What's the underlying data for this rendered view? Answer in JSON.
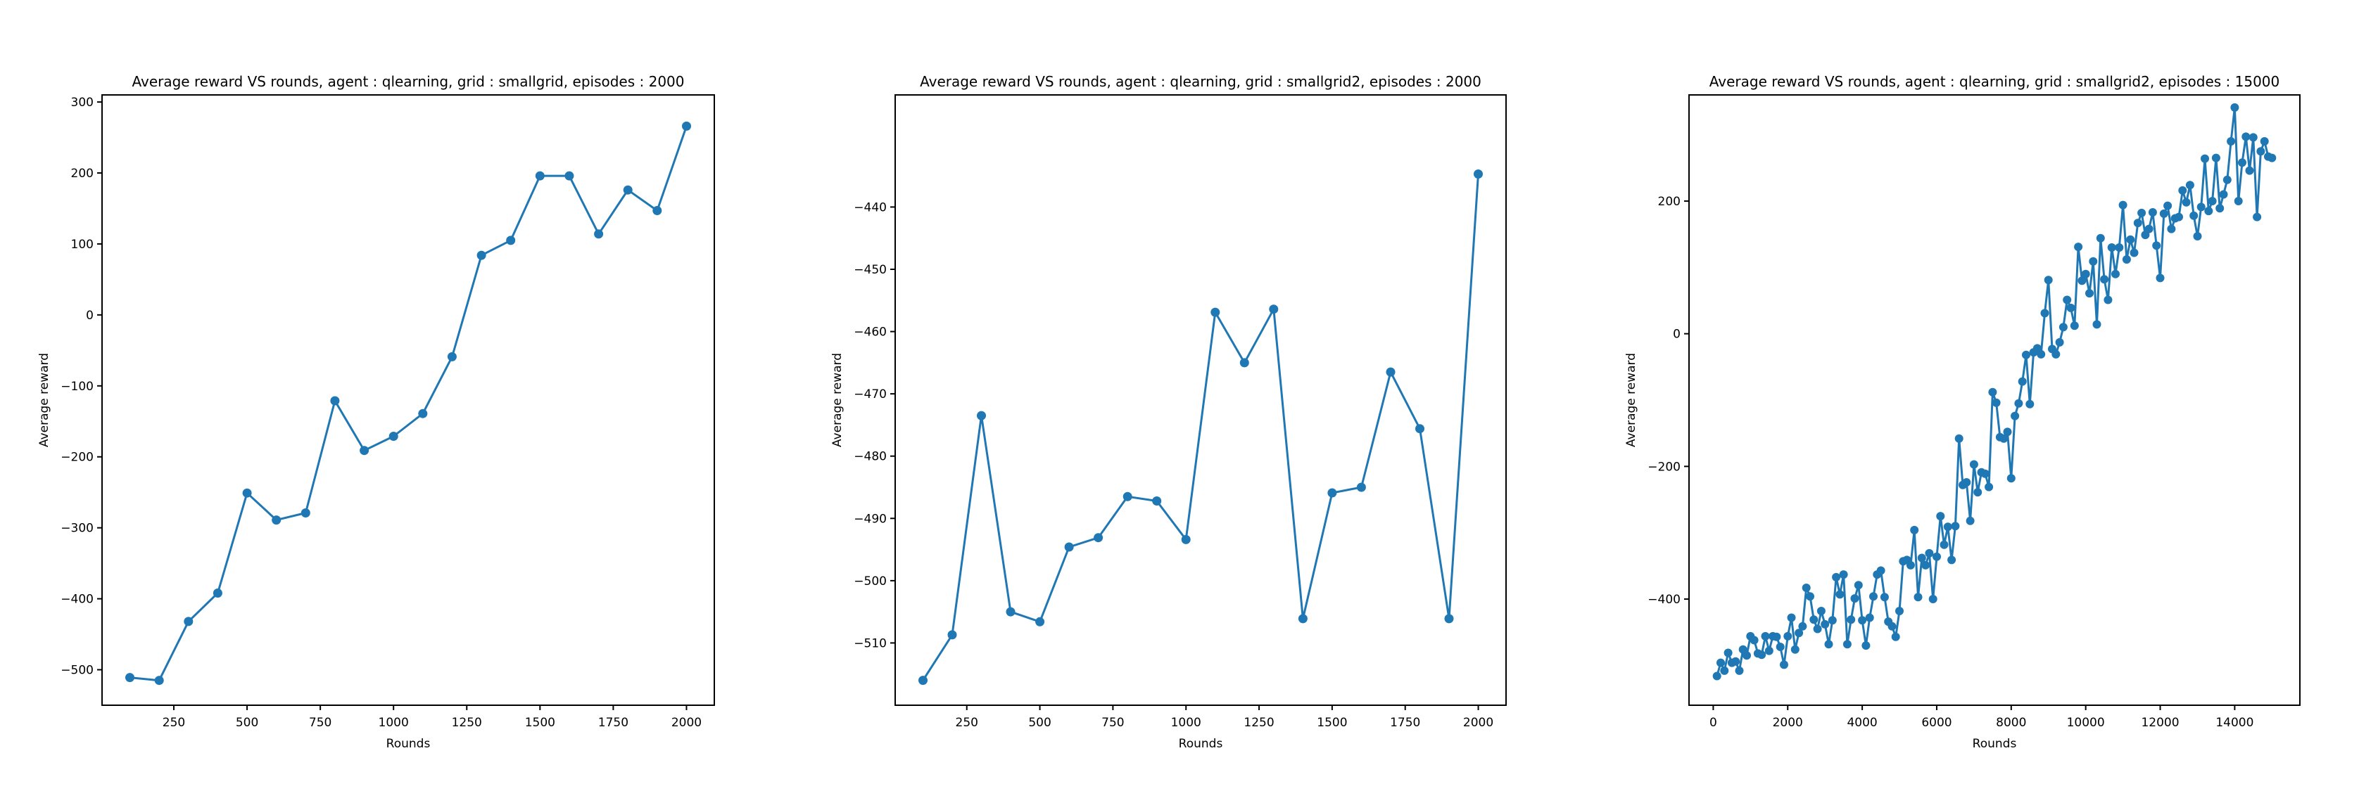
{
  "colors": {
    "series": "#1f77b4",
    "axes": "#000000",
    "background": "#ffffff"
  },
  "chart_data": [
    {
      "type": "line",
      "markers": "circle",
      "title": "Average reward VS rounds, agent : qlearning, grid : smallgrid, episodes : 2000",
      "xlabel": "Rounds",
      "ylabel": "Average reward",
      "grid": false,
      "xlim": [
        5,
        2095
      ],
      "ylim": [
        -550,
        310
      ],
      "xticks": [
        250,
        500,
        750,
        1000,
        1250,
        1500,
        1750,
        2000
      ],
      "xtick_labels": [
        "250",
        "500",
        "750",
        "1000",
        "1250",
        "1500",
        "1750",
        "2000"
      ],
      "yticks": [
        -500,
        -400,
        -300,
        -200,
        -100,
        0,
        100,
        200,
        300
      ],
      "ytick_labels": [
        "−500",
        "−400",
        "−300",
        "−200",
        "−100",
        "0",
        "100",
        "200",
        "300"
      ],
      "x": [
        100,
        200,
        300,
        400,
        500,
        600,
        700,
        800,
        900,
        1000,
        1100,
        1200,
        1300,
        1400,
        1500,
        1600,
        1700,
        1800,
        1900,
        2000
      ],
      "y": [
        -511,
        -515,
        -432,
        -392,
        -251,
        -289,
        -279,
        -121,
        -191,
        -171,
        -139,
        -59,
        84,
        105,
        196,
        196,
        114,
        176,
        147,
        266
      ]
    },
    {
      "type": "line",
      "markers": "circle",
      "title": "Average reward VS rounds, agent : qlearning, grid : smallgrid2, episodes : 2000",
      "xlabel": "Rounds",
      "ylabel": "Average reward",
      "grid": false,
      "xlim": [
        5,
        2095
      ],
      "ylim": [
        -520,
        -422
      ],
      "xticks": [
        250,
        500,
        750,
        1000,
        1250,
        1500,
        1750,
        2000
      ],
      "xtick_labels": [
        "250",
        "500",
        "750",
        "1000",
        "1250",
        "1500",
        "1750",
        "2000"
      ],
      "yticks": [
        -510,
        -500,
        -490,
        -480,
        -470,
        -460,
        -450,
        -440
      ],
      "ytick_labels": [
        "−510",
        "−500",
        "−490",
        "−480",
        "−470",
        "−460",
        "−450",
        "−440"
      ],
      "x": [
        100,
        200,
        300,
        400,
        500,
        600,
        700,
        800,
        900,
        1000,
        1100,
        1200,
        1300,
        1400,
        1500,
        1600,
        1700,
        1800,
        1900,
        2000
      ],
      "y": [
        -516.0,
        -508.7,
        -473.5,
        -505.0,
        -506.6,
        -494.6,
        -493.1,
        -486.5,
        -487.2,
        -493.4,
        -456.9,
        -465.0,
        -456.4,
        -506.1,
        -485.9,
        -485.0,
        -466.5,
        -475.6,
        -506.1,
        -434.7
      ]
    },
    {
      "type": "line",
      "markers": "circle",
      "title": "Average reward VS rounds, agent : qlearning, grid : smallgrid2, episodes : 15000",
      "xlabel": "Rounds",
      "ylabel": "Average reward",
      "grid": false,
      "xlim": [
        -650,
        15750
      ],
      "ylim": [
        -560,
        360
      ],
      "xticks": [
        0,
        2000,
        4000,
        6000,
        8000,
        10000,
        12000,
        14000
      ],
      "xtick_labels": [
        "0",
        "2000",
        "4000",
        "6000",
        "8000",
        "10000",
        "12000",
        "14000"
      ],
      "yticks": [
        -400,
        -200,
        0,
        200
      ],
      "ytick_labels": [
        "−400",
        "−200",
        "0",
        "200"
      ],
      "x": [
        100,
        200,
        300,
        400,
        500,
        600,
        700,
        800,
        900,
        1000,
        1100,
        1200,
        1300,
        1400,
        1500,
        1600,
        1700,
        1800,
        1900,
        2000,
        2100,
        2200,
        2300,
        2400,
        2500,
        2600,
        2700,
        2800,
        2900,
        3000,
        3100,
        3200,
        3300,
        3400,
        3500,
        3600,
        3700,
        3800,
        3900,
        4000,
        4100,
        4200,
        4300,
        4400,
        4500,
        4600,
        4700,
        4800,
        4900,
        5000,
        5100,
        5200,
        5300,
        5400,
        5500,
        5600,
        5700,
        5800,
        5900,
        6000,
        6100,
        6200,
        6300,
        6400,
        6500,
        6600,
        6700,
        6800,
        6900,
        7000,
        7100,
        7200,
        7300,
        7400,
        7500,
        7600,
        7700,
        7800,
        7900,
        8000,
        8100,
        8200,
        8300,
        8400,
        8500,
        8600,
        8700,
        8800,
        8900,
        9000,
        9100,
        9200,
        9300,
        9400,
        9500,
        9600,
        9700,
        9800,
        9900,
        10000,
        10100,
        10200,
        10300,
        10400,
        10500,
        10600,
        10700,
        10800,
        10900,
        11000,
        11100,
        11200,
        11300,
        11400,
        11500,
        11600,
        11700,
        11800,
        11900,
        12000,
        12100,
        12200,
        12300,
        12400,
        12500,
        12600,
        12700,
        12800,
        12900,
        13000,
        13100,
        13200,
        13300,
        13400,
        13500,
        13600,
        13700,
        13800,
        13900,
        14000,
        14100,
        14200,
        14300,
        14400,
        14500,
        14600,
        14700,
        14800,
        14900,
        15000
      ],
      "y": [
        -516,
        -496,
        -508,
        -481,
        -496,
        -494,
        -508,
        -476,
        -485,
        -456,
        -462,
        -482,
        -484,
        -456,
        -478,
        -456,
        -457,
        -472,
        -499,
        -456,
        -428,
        -476,
        -451,
        -441,
        -383,
        -396,
        -431,
        -445,
        -418,
        -438,
        -468,
        -432,
        -367,
        -393,
        -363,
        -468,
        -431,
        -399,
        -379,
        -432,
        -470,
        -428,
        -396,
        -363,
        -357,
        -397,
        -434,
        -441,
        -457,
        -418,
        -343,
        -341,
        -349,
        -296,
        -397,
        -338,
        -349,
        -331,
        -400,
        -336,
        -275,
        -318,
        -291,
        -341,
        -290,
        -158,
        -228,
        -224,
        -282,
        -197,
        -239,
        -209,
        -211,
        -231,
        -88,
        -104,
        -156,
        -158,
        -148,
        -218,
        -124,
        -105,
        -72,
        -32,
        -106,
        -28,
        -22,
        -31,
        31,
        81,
        -23,
        -31,
        -13,
        10,
        51,
        39,
        12,
        131,
        80,
        90,
        61,
        109,
        14,
        144,
        82,
        51,
        130,
        90,
        130,
        194,
        112,
        142,
        122,
        167,
        182,
        149,
        158,
        183,
        133,
        84,
        181,
        193,
        158,
        174,
        176,
        216,
        198,
        224,
        178,
        147,
        191,
        264,
        185,
        200,
        265,
        189,
        210,
        232,
        290,
        341,
        200,
        258,
        297,
        246,
        296,
        176,
        275,
        290,
        267,
        265
      ]
    }
  ]
}
